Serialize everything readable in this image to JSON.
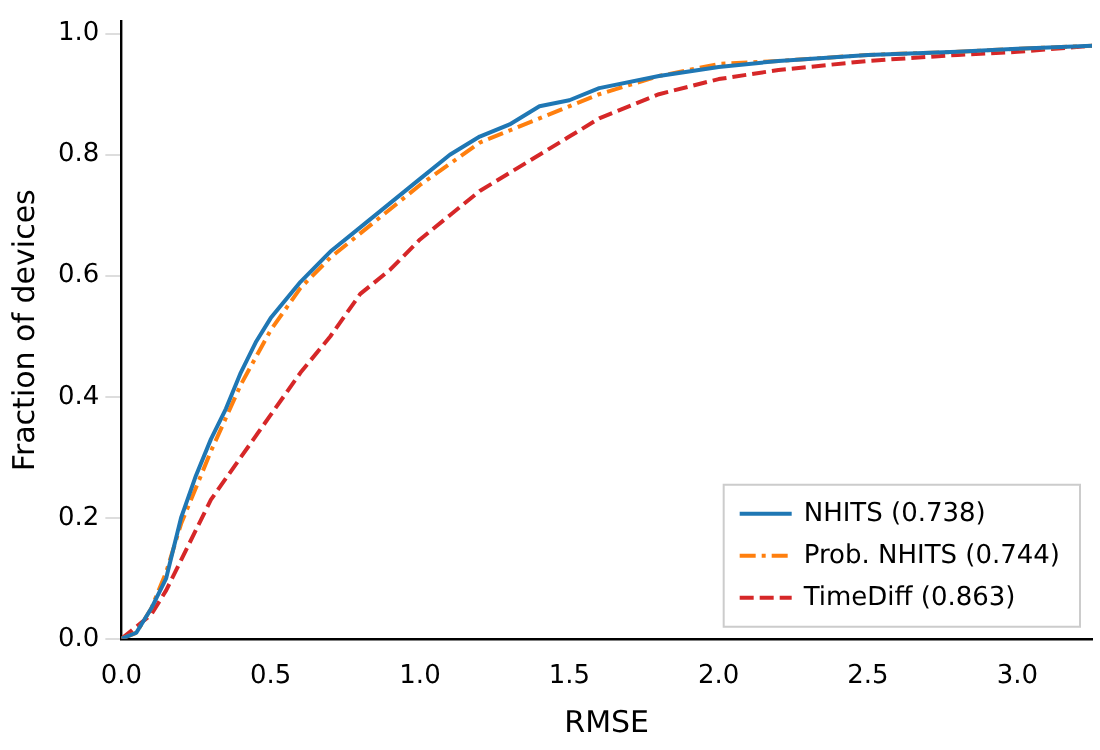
{
  "chart_data": {
    "type": "line",
    "xlabel": "RMSE",
    "ylabel": "Fraction of devices",
    "xlim": [
      0,
      3.25
    ],
    "ylim": [
      0,
      1.02
    ],
    "xticks": [
      {
        "value": 0,
        "label": "0.0"
      },
      {
        "value": 0.5,
        "label": "0.5"
      },
      {
        "value": 1,
        "label": "1.0"
      },
      {
        "value": 1.5,
        "label": "1.5"
      },
      {
        "value": 2,
        "label": "2.0"
      },
      {
        "value": 2.5,
        "label": "2.5"
      },
      {
        "value": 3,
        "label": "3.0"
      }
    ],
    "yticks": [
      {
        "value": 0,
        "label": "0.0"
      },
      {
        "value": 0.2,
        "label": "0.2"
      },
      {
        "value": 0.4,
        "label": "0.4"
      },
      {
        "value": 0.6,
        "label": "0.6"
      },
      {
        "value": 0.8,
        "label": "0.8"
      },
      {
        "value": 1,
        "label": "1.0"
      }
    ],
    "grid": false,
    "legend": "bottom right",
    "marker": "none",
    "series": [
      {
        "name": "NHITS (0.738)",
        "color": "#1f77b4",
        "line_style": "solid",
        "x": [
          0,
          0.05,
          0.1,
          0.15,
          0.2,
          0.25,
          0.3,
          0.35,
          0.4,
          0.45,
          0.5,
          0.6,
          0.7,
          0.8,
          0.9,
          1.0,
          1.1,
          1.2,
          1.3,
          1.4,
          1.5,
          1.6,
          1.8,
          2.0,
          2.2,
          2.5,
          2.8,
          3.0,
          3.25
        ],
        "values": [
          0,
          0.01,
          0.05,
          0.1,
          0.2,
          0.27,
          0.33,
          0.38,
          0.44,
          0.49,
          0.53,
          0.59,
          0.64,
          0.68,
          0.72,
          0.76,
          0.8,
          0.83,
          0.85,
          0.88,
          0.89,
          0.91,
          0.93,
          0.945,
          0.955,
          0.965,
          0.97,
          0.975,
          0.98
        ]
      },
      {
        "name": "Prob. NHITS (0.744)",
        "color": "#ff7f0e",
        "line_style": "dashdot",
        "x": [
          0,
          0.05,
          0.1,
          0.15,
          0.2,
          0.3,
          0.4,
          0.5,
          0.6,
          0.7,
          0.8,
          1.0,
          1.2,
          1.4,
          1.6,
          1.8,
          2.0,
          2.2,
          2.5,
          2.8,
          3.0,
          3.25
        ],
        "values": [
          0,
          0.01,
          0.05,
          0.11,
          0.19,
          0.31,
          0.42,
          0.51,
          0.58,
          0.63,
          0.67,
          0.75,
          0.82,
          0.86,
          0.9,
          0.93,
          0.95,
          0.955,
          0.965,
          0.97,
          0.975,
          0.98
        ]
      },
      {
        "name": "TimeDiff (0.863)",
        "color": "#d62728",
        "line_style": "dashed",
        "x": [
          0,
          0.05,
          0.1,
          0.15,
          0.2,
          0.3,
          0.4,
          0.5,
          0.6,
          0.7,
          0.8,
          0.9,
          1.0,
          1.1,
          1.2,
          1.3,
          1.4,
          1.5,
          1.6,
          1.8,
          2.0,
          2.2,
          2.5,
          2.8,
          3.0,
          3.25
        ],
        "values": [
          0,
          0.02,
          0.04,
          0.08,
          0.13,
          0.23,
          0.3,
          0.37,
          0.44,
          0.5,
          0.57,
          0.61,
          0.66,
          0.7,
          0.74,
          0.77,
          0.8,
          0.83,
          0.86,
          0.9,
          0.925,
          0.94,
          0.955,
          0.965,
          0.97,
          0.98
        ]
      }
    ]
  }
}
